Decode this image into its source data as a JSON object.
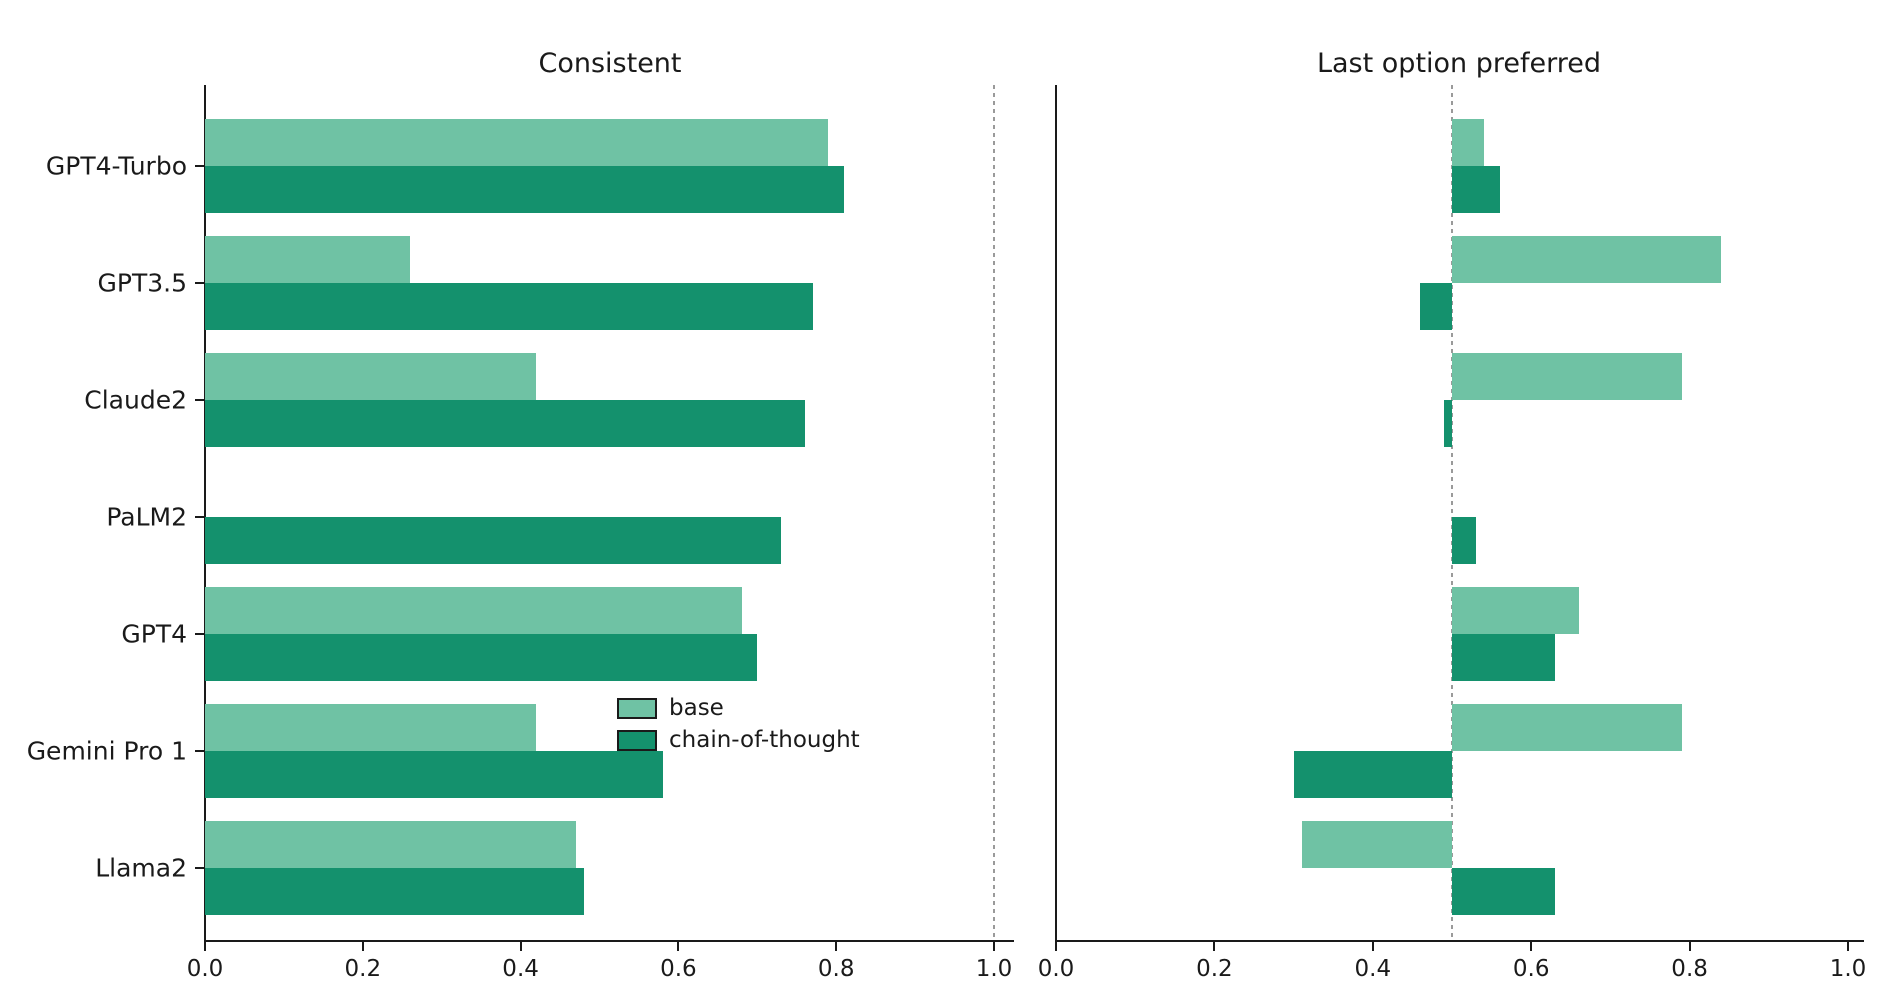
{
  "figure": {
    "background": "#ffffff",
    "axis_color": "#1a1a1a",
    "reference_line_color": "#9a9a9a",
    "series_colors": {
      "base": "#6fc2a4",
      "chain_of_thought": "#14916d"
    },
    "legend": {
      "items": [
        {
          "label": "base",
          "color": "#6fc2a4"
        },
        {
          "label": "chain-of-thought",
          "color": "#14916d"
        }
      ],
      "position": "lower-right-of-left-chart"
    }
  },
  "chart_data": [
    {
      "type": "bar",
      "orientation": "horizontal",
      "title": "Consistent",
      "categories": [
        "GPT4-Turbo",
        "GPT3.5",
        "Claude2",
        "PaLM2",
        "GPT4",
        "Gemini Pro 1",
        "Llama2"
      ],
      "series": [
        {
          "name": "base",
          "values": [
            0.79,
            0.26,
            0.42,
            null,
            0.68,
            0.42,
            0.47
          ]
        },
        {
          "name": "chain-of-thought",
          "values": [
            0.81,
            0.77,
            0.76,
            0.73,
            0.7,
            0.58,
            0.48
          ]
        }
      ],
      "xlim": [
        0.0,
        1.0
      ],
      "xticks": [
        "0.0",
        "0.2",
        "0.4",
        "0.6",
        "0.8",
        "1.0"
      ],
      "bar_anchor": 0.0,
      "reference_line": 1.0,
      "grid": false,
      "show_category_labels": true
    },
    {
      "type": "bar",
      "orientation": "horizontal",
      "title": "Last option preferred",
      "categories": [
        "GPT4-Turbo",
        "GPT3.5",
        "Claude2",
        "PaLM2",
        "GPT4",
        "Gemini Pro 1",
        "Llama2"
      ],
      "series": [
        {
          "name": "base",
          "values": [
            0.54,
            0.84,
            0.79,
            null,
            0.66,
            0.79,
            0.31
          ]
        },
        {
          "name": "chain-of-thought",
          "values": [
            0.56,
            0.46,
            0.49,
            0.53,
            0.63,
            0.3,
            0.63
          ]
        }
      ],
      "xlim": [
        0.0,
        1.0
      ],
      "xticks": [
        "0.0",
        "0.2",
        "0.4",
        "0.6",
        "0.8",
        "1.0"
      ],
      "bar_anchor": 0.5,
      "reference_line": 0.5,
      "grid": false,
      "show_category_labels": false
    }
  ]
}
